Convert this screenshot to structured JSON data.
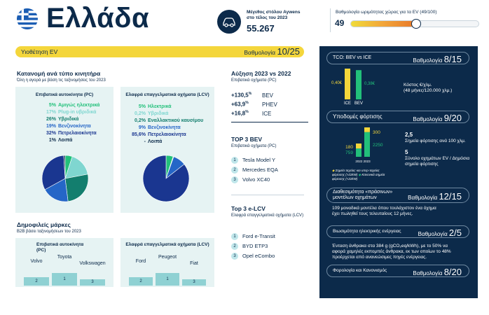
{
  "header": {
    "country": "Ελλάδα",
    "fleet_label_1": "Μέγεθος στόλου Aywens",
    "fleet_label_2": "στο τέλος του 2023",
    "fleet_value": "55.267",
    "rank_label": "Βαθμολογία ωριμότητας χώρας για τα EV",
    "rank_suffix": "(49/100)",
    "rank_value": "49",
    "rank_fraction": 0.49
  },
  "ev_bar": {
    "label": "Υιοθέτηση EV",
    "score_label": "Βαθμολογία",
    "score": "10/25"
  },
  "distribution": {
    "title": "Κατανομή ανά τύπο κινητήρα",
    "subtitle": "Όλη η αγορά με βάση τις ταξινομήσεις του 2023",
    "pc": {
      "header": "Επιβατικά αυτοκίνητα (PC)",
      "items": [
        {
          "pct": "5%",
          "label": "Αμιγώς ηλεκτρικά",
          "color": "#22c07a"
        },
        {
          "pct": "17%",
          "label": "Plug-in υβριδικά",
          "color": "#7fd6d0"
        },
        {
          "pct": "26%",
          "label": "Υβριδικά",
          "color": "#137e6e"
        },
        {
          "pct": "19%",
          "label": "Βενζινοκίνητα",
          "color": "#2566c7"
        },
        {
          "pct": "32%",
          "label": "Πετρελαιοκίνητα",
          "color": "#1a3690"
        },
        {
          "pct": "1%",
          "label": "Λοιπά",
          "color": "#0c2a4a"
        }
      ]
    },
    "lcv": {
      "header": "Ελαφρά επαγγελματικά οχήματα (LCV)",
      "items": [
        {
          "pct": "5%",
          "label": "Ηλεκτρικά",
          "color": "#22c07a"
        },
        {
          "pct": "0,2%",
          "label": "Υβριδικά",
          "color": "#7fd6d0"
        },
        {
          "pct": "0,2%",
          "label": "Εναλλακτικού καυσίμου",
          "color": "#137e6e"
        },
        {
          "pct": "9%",
          "label": "Βενζινοκίνητα",
          "color": "#2566c7"
        },
        {
          "pct": "85,6%",
          "label": "Πετρελαιοκίνητα",
          "color": "#1a3690"
        },
        {
          "pct": "-",
          "label": "Λοιπά",
          "color": "#0c2a4a"
        }
      ]
    }
  },
  "growth": {
    "title": "Αύξηση 2023 vs 2022",
    "subtitle": "Επιβατικά οχήματα (PC)",
    "rows": [
      {
        "value": "+130,5",
        "unit": "%",
        "label": "BEV"
      },
      {
        "value": "+63,9",
        "unit": "%",
        "label": "PHEV"
      },
      {
        "value": "+16,8",
        "unit": "%",
        "label": "ICE"
      }
    ]
  },
  "top_bev": {
    "title": "TOP 3 BEV",
    "subtitle": "Επιβατικά οχήματα (PC)",
    "items": [
      {
        "rank": "1",
        "name": "Tesla Model Y"
      },
      {
        "rank": "2",
        "name": "Mercedes EQA"
      },
      {
        "rank": "3",
        "name": "Volvo XC40"
      }
    ]
  },
  "top_lcv": {
    "title": "Top 3 e-LCV",
    "subtitle": "Ελαφρά επαγγελματικά οχήματα (LCV)",
    "items": [
      {
        "rank": "1",
        "name": "Ford e-Transit"
      },
      {
        "rank": "2",
        "name": "BYD ETP3"
      },
      {
        "rank": "3",
        "name": "Opel eCombo"
      }
    ]
  },
  "brands": {
    "title": "Δημοφιλείς μάρκες",
    "subtitle": "B2B βάσει ταξινομήσεων του 2023",
    "pc": {
      "header": "Επιβατικά αυτοκίνητα (PC)",
      "podium": [
        {
          "rank": "2",
          "name": "Volvo"
        },
        {
          "rank": "1",
          "name": "Toyota"
        },
        {
          "rank": "3",
          "name": "Volkswagen"
        }
      ]
    },
    "lcv": {
      "header": "Ελαφρά επαγγελματικά οχήματα (LCV)",
      "podium": [
        {
          "rank": "2",
          "name": "Ford"
        },
        {
          "rank": "1",
          "name": "Peugeot"
        },
        {
          "rank": "3",
          "name": "Fiat"
        }
      ]
    }
  },
  "right": {
    "tco": {
      "label": "TCO: BEV vs ICE",
      "score_label": "Βαθμολογία",
      "score": "8/15",
      "ice_value": "0,40€",
      "bev_value": "0,38€",
      "ice_label": "ICE",
      "bev_label": "BEV",
      "cost_line1": "Κόστος €/χλμ.",
      "cost_line2": "(48 μήνες/120.000 χλμ.)",
      "chart_data": {
        "type": "bar",
        "categories": [
          "ICE",
          "BEV"
        ],
        "values": [
          0.4,
          0.38
        ]
      }
    },
    "charging": {
      "label": "Υποδομές φόρτισης",
      "score_label": "Βαθμολογία",
      "score": "9/20",
      "v2022_low": "759",
      "v2022_high": "180",
      "v2023_low": "2250",
      "v2023_high": "300",
      "year_labels": "2022 2023",
      "stat1_value": "2,5",
      "stat1_label": "Σημεία φόρτισης ανά 100 χλμ.",
      "stat2_value": "5",
      "stat2_label1": "Σύνολο οχημάτων EV / Δημόσια",
      "stat2_label2": "σημεία φόρτισης",
      "legend1_a": "Σημεία ταχείας και υπερ-ταχείας",
      "legend1_b": "φόρτισης (>22kW)",
      "legend2_a": "Κανονικά σημεία",
      "legend2_b": "φόρτισης (<22kW)",
      "chart_data": {
        "type": "bar",
        "categories": [
          "2022",
          "2023"
        ],
        "series": [
          {
            "name": "Κανονικά σημεία φόρτισης (<22kW)",
            "values": [
              759,
              2250
            ]
          },
          {
            "name": "Σημεία ταχείας και υπερ-ταχείας φόρτισης (>22kW)",
            "values": [
              180,
              300
            ]
          }
        ]
      }
    },
    "availability": {
      "label_1": "Διαθεσιμότητα «πράσινων»",
      "label_2": "μοντέλων οχημάτων",
      "score_label": "Βαθμολογία",
      "score": "12/15",
      "text_1": "109 μοναδικά μοντέλα όπου τουλάχιστον ένα όχημα",
      "text_2": "έχει πωληθεί τους τελευταίους 12 μήνες."
    },
    "carbon": {
      "label": "Βιωσιμότητα ηλεκτρικής ενέργειας",
      "score_label": "Βαθμολογία",
      "score": "2/5",
      "text_1": "Ένταση άνθρακα στα 384 g (gCO₂eq/kWh), με το 50% να",
      "text_2": "αφορά χαμηλές εκπομπές άνθρακα, εκ των οποίων το 48%",
      "text_3": "προέρχεται από ανανεώσιμες πηγές ενέργειας."
    },
    "tax": {
      "label": "Φορολογία και Κανονισμός",
      "score_label": "Βαθμολογία",
      "score": "8/20"
    }
  },
  "colors": {
    "navy": "#0c2a4a",
    "yellow": "#f4d63b",
    "green": "#22c07a",
    "teal_panel": "#e6f3f3"
  }
}
